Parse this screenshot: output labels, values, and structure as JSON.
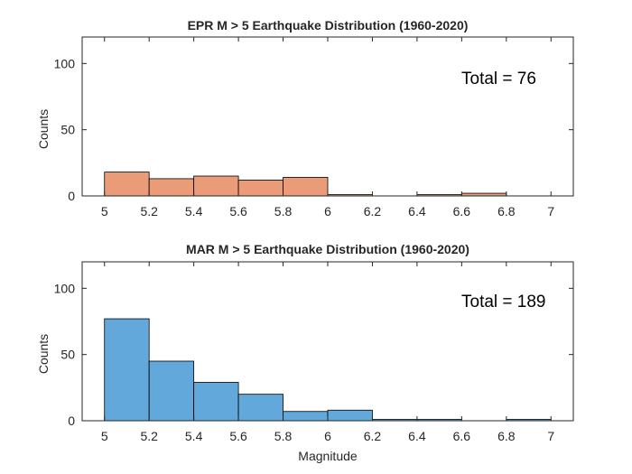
{
  "chart_data": [
    {
      "type": "bar",
      "title": "EPR M > 5 Earthquake Distribution (1960-2020)",
      "xlabel": "",
      "ylabel": "Counts",
      "annotation": "Total = 76",
      "bin_edges": [
        5,
        5.2,
        5.4,
        5.6,
        5.8,
        6,
        6.2,
        6.4,
        6.6,
        6.8,
        7
      ],
      "values": [
        18,
        13,
        15,
        12,
        14,
        1,
        0,
        1,
        2,
        0
      ],
      "xlim": [
        4.9,
        7.1
      ],
      "ylim": [
        0,
        120
      ],
      "xticks": [
        "5",
        "5.2",
        "5.4",
        "5.6",
        "5.8",
        "6",
        "6.2",
        "6.4",
        "6.6",
        "6.8",
        "7"
      ],
      "yticks": [
        "0",
        "50",
        "100"
      ],
      "color": "#EA9B77",
      "grid": false
    },
    {
      "type": "bar",
      "title": "MAR M > 5 Earthquake Distribution (1960-2020)",
      "xlabel": "Magnitude",
      "ylabel": "Counts",
      "annotation": "Total = 189",
      "bin_edges": [
        5,
        5.2,
        5.4,
        5.6,
        5.8,
        6,
        6.2,
        6.4,
        6.6,
        6.8,
        7
      ],
      "values": [
        77,
        45,
        29,
        20,
        7,
        8,
        1,
        1,
        0,
        1
      ],
      "xlim": [
        4.9,
        7.1
      ],
      "ylim": [
        0,
        120
      ],
      "xticks": [
        "5",
        "5.2",
        "5.4",
        "5.6",
        "5.8",
        "6",
        "6.2",
        "6.4",
        "6.6",
        "6.8",
        "7"
      ],
      "yticks": [
        "0",
        "50",
        "100"
      ],
      "color": "#62A8DA",
      "grid": false
    }
  ]
}
